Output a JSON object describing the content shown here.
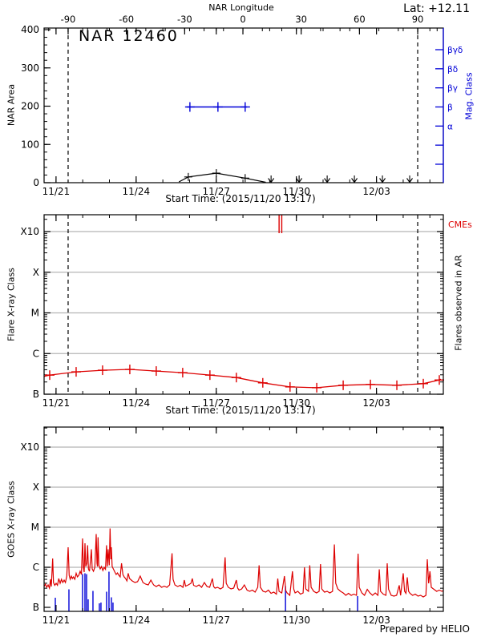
{
  "title": "NAR 12460",
  "lat_label": "Lat: +12.11",
  "prepared_by": "Prepared by HELIO",
  "start_time_caption": "Start Time: (2015/11/20 13:17)",
  "colors": {
    "red": "#dd0000",
    "blue": "#0000d8",
    "grid": "#b4b4b4",
    "black": "#000000"
  },
  "time_axis": {
    "span_days": 14.95,
    "major_ticks": [
      {
        "day": 0.447,
        "label": "11/21"
      },
      {
        "day": 3.447,
        "label": "11/24"
      },
      {
        "day": 6.447,
        "label": "11/27"
      },
      {
        "day": 9.447,
        "label": "11/30"
      },
      {
        "day": 12.447,
        "label": "12/03"
      }
    ],
    "minor_start_day": 0.447,
    "minor_step_days": 1,
    "minor_count": 15
  },
  "limb_line_days": [
    0.9,
    13.99
  ],
  "chart_data": [
    {
      "type": "line",
      "panel": "nar-area",
      "ylabel": "NAR Area",
      "ylim": [
        0,
        400
      ],
      "yticks": [
        0,
        100,
        200,
        300,
        400
      ],
      "y_minor_step": 20,
      "top_axis": {
        "label": "NAR Longitude",
        "ticks": [
          -90,
          -60,
          -30,
          0,
          30,
          60,
          90
        ],
        "minor_step": 10,
        "day_at_minus90": 0.9,
        "deg_per_day": 13.75
      },
      "area_series": {
        "days": [
          5.05,
          5.4,
          6.45,
          7.53,
          8.3
        ],
        "values": [
          2,
          15,
          25,
          12,
          1
        ],
        "marker_days": [
          5.4,
          6.45,
          7.53
        ]
      },
      "zero_marker_days": [
        8.5,
        9.55,
        10.6,
        11.62,
        12.67,
        13.69
      ],
      "mag_axis": {
        "label": "Mag. Class",
        "tick_labels_top_to_bottom": [
          "βγδ",
          "βδ",
          "βγ",
          "β",
          "α",
          "",
          ""
        ],
        "series": {
          "level_label": "β",
          "level_index_from_top": 3,
          "start_day": 5.34,
          "end_day": 7.6,
          "marker_days": [
            5.46,
            6.51,
            7.53
          ]
        }
      }
    },
    {
      "type": "line",
      "panel": "flare-xray",
      "ylabel": "Flare X-ray Class",
      "ytick_labels": [
        "B",
        "C",
        "M",
        "X",
        "X10"
      ],
      "right_label": "Flares observed in AR",
      "cmes": {
        "label": "CMEs",
        "days": [
          8.8,
          8.9
        ]
      },
      "flare_series": {
        "days": [
          0.0,
          0.21,
          1.2,
          2.19,
          3.21,
          4.2,
          5.19,
          6.21,
          7.2,
          8.19,
          9.21,
          10.21,
          11.2,
          12.22,
          13.21,
          14.2,
          14.8,
          14.86
        ],
        "class_values": [
          0.44,
          0.47,
          0.55,
          0.59,
          0.61,
          0.57,
          0.53,
          0.47,
          0.41,
          0.28,
          0.18,
          0.16,
          0.22,
          0.24,
          0.22,
          0.26,
          0.35,
          0.37
        ],
        "marker_index_range": [
          1,
          16
        ]
      }
    },
    {
      "type": "line",
      "panel": "goes-xray",
      "ylabel": "GOES X-ray Class",
      "ytick_labels": [
        "B",
        "C",
        "M",
        "X",
        "X10"
      ],
      "goes_series": {
        "points": [
          [
            0.0,
            0.52
          ],
          [
            0.05,
            0.58
          ],
          [
            0.1,
            0.5
          ],
          [
            0.15,
            0.56
          ],
          [
            0.2,
            0.48
          ],
          [
            0.24,
            0.7
          ],
          [
            0.27,
            0.52
          ],
          [
            0.32,
            1.22
          ],
          [
            0.35,
            0.62
          ],
          [
            0.4,
            0.55
          ],
          [
            0.45,
            0.6
          ],
          [
            0.5,
            0.55
          ],
          [
            0.55,
            0.72
          ],
          [
            0.6,
            0.6
          ],
          [
            0.65,
            0.7
          ],
          [
            0.7,
            0.62
          ],
          [
            0.75,
            0.68
          ],
          [
            0.8,
            0.62
          ],
          [
            0.85,
            0.78
          ],
          [
            0.9,
            1.5
          ],
          [
            0.94,
            0.8
          ],
          [
            0.98,
            0.7
          ],
          [
            1.02,
            0.78
          ],
          [
            1.06,
            0.72
          ],
          [
            1.1,
            0.76
          ],
          [
            1.15,
            0.7
          ],
          [
            1.2,
            0.85
          ],
          [
            1.25,
            0.76
          ],
          [
            1.3,
            0.8
          ],
          [
            1.35,
            0.9
          ],
          [
            1.4,
            0.82
          ],
          [
            1.44,
            1.72
          ],
          [
            1.47,
            1.0
          ],
          [
            1.5,
            0.88
          ],
          [
            1.53,
            1.6
          ],
          [
            1.56,
            1.02
          ],
          [
            1.6,
            1.1
          ],
          [
            1.63,
            1.55
          ],
          [
            1.66,
            0.96
          ],
          [
            1.7,
            0.9
          ],
          [
            1.74,
            1.2
          ],
          [
            1.77,
            1.45
          ],
          [
            1.8,
            0.96
          ],
          [
            1.85,
            0.9
          ],
          [
            1.9,
            1.0
          ],
          [
            1.95,
            1.83
          ],
          [
            1.98,
            1.1
          ],
          [
            2.0,
            1.02
          ],
          [
            2.02,
            1.75
          ],
          [
            2.05,
            1.05
          ],
          [
            2.1,
            0.96
          ],
          [
            2.15,
            1.02
          ],
          [
            2.2,
            0.92
          ],
          [
            2.25,
            1.0
          ],
          [
            2.3,
            0.95
          ],
          [
            2.34,
            1.55
          ],
          [
            2.37,
            1.02
          ],
          [
            2.4,
            1.45
          ],
          [
            2.44,
            1.05
          ],
          [
            2.47,
            1.97
          ],
          [
            2.5,
            1.2
          ],
          [
            2.52,
            1.5
          ],
          [
            2.55,
            1.02
          ],
          [
            2.6,
            0.95
          ],
          [
            2.65,
            0.88
          ],
          [
            2.7,
            0.82
          ],
          [
            2.75,
            0.86
          ],
          [
            2.8,
            0.8
          ],
          [
            2.85,
            0.76
          ],
          [
            2.9,
            1.1
          ],
          [
            2.95,
            0.82
          ],
          [
            3.0,
            0.76
          ],
          [
            3.05,
            0.72
          ],
          [
            3.1,
            0.66
          ],
          [
            3.15,
            0.85
          ],
          [
            3.2,
            0.72
          ],
          [
            3.3,
            0.66
          ],
          [
            3.4,
            0.62
          ],
          [
            3.5,
            0.64
          ],
          [
            3.6,
            0.78
          ],
          [
            3.7,
            0.62
          ],
          [
            3.8,
            0.58
          ],
          [
            3.9,
            0.56
          ],
          [
            4.0,
            0.68
          ],
          [
            4.1,
            0.56
          ],
          [
            4.2,
            0.52
          ],
          [
            4.3,
            0.56
          ],
          [
            4.4,
            0.5
          ],
          [
            4.5,
            0.53
          ],
          [
            4.6,
            0.5
          ],
          [
            4.7,
            0.56
          ],
          [
            4.79,
            1.35
          ],
          [
            4.83,
            0.7
          ],
          [
            4.9,
            0.56
          ],
          [
            5.0,
            0.52
          ],
          [
            5.1,
            0.55
          ],
          [
            5.2,
            0.5
          ],
          [
            5.25,
            0.68
          ],
          [
            5.3,
            0.53
          ],
          [
            5.4,
            0.56
          ],
          [
            5.5,
            0.6
          ],
          [
            5.55,
            0.72
          ],
          [
            5.6,
            0.55
          ],
          [
            5.7,
            0.52
          ],
          [
            5.8,
            0.56
          ],
          [
            5.9,
            0.5
          ],
          [
            6.0,
            0.62
          ],
          [
            6.1,
            0.52
          ],
          [
            6.2,
            0.5
          ],
          [
            6.3,
            0.72
          ],
          [
            6.35,
            0.52
          ],
          [
            6.4,
            0.48
          ],
          [
            6.5,
            0.5
          ],
          [
            6.6,
            0.46
          ],
          [
            6.7,
            0.5
          ],
          [
            6.78,
            1.25
          ],
          [
            6.82,
            0.6
          ],
          [
            6.9,
            0.5
          ],
          [
            7.0,
            0.46
          ],
          [
            7.1,
            0.48
          ],
          [
            7.2,
            0.68
          ],
          [
            7.25,
            0.48
          ],
          [
            7.3,
            0.43
          ],
          [
            7.4,
            0.46
          ],
          [
            7.5,
            0.56
          ],
          [
            7.6,
            0.43
          ],
          [
            7.7,
            0.4
          ],
          [
            7.8,
            0.43
          ],
          [
            7.9,
            0.38
          ],
          [
            8.0,
            0.5
          ],
          [
            8.05,
            1.05
          ],
          [
            8.1,
            0.5
          ],
          [
            8.2,
            0.4
          ],
          [
            8.3,
            0.38
          ],
          [
            8.4,
            0.43
          ],
          [
            8.5,
            0.35
          ],
          [
            8.6,
            0.38
          ],
          [
            8.7,
            0.33
          ],
          [
            8.75,
            0.72
          ],
          [
            8.8,
            0.4
          ],
          [
            8.9,
            0.36
          ],
          [
            9.0,
            0.78
          ],
          [
            9.05,
            0.42
          ],
          [
            9.1,
            0.36
          ],
          [
            9.2,
            0.3
          ],
          [
            9.3,
            0.9
          ],
          [
            9.35,
            0.45
          ],
          [
            9.4,
            0.36
          ],
          [
            9.5,
            0.4
          ],
          [
            9.6,
            0.33
          ],
          [
            9.7,
            0.36
          ],
          [
            9.75,
            1.0
          ],
          [
            9.8,
            0.46
          ],
          [
            9.9,
            0.4
          ],
          [
            9.95,
            1.05
          ],
          [
            10.0,
            0.5
          ],
          [
            10.1,
            0.4
          ],
          [
            10.2,
            0.36
          ],
          [
            10.3,
            0.4
          ],
          [
            10.35,
            1.08
          ],
          [
            10.4,
            0.46
          ],
          [
            10.5,
            0.38
          ],
          [
            10.6,
            0.4
          ],
          [
            10.7,
            0.36
          ],
          [
            10.8,
            0.4
          ],
          [
            10.87,
            1.57
          ],
          [
            10.92,
            0.6
          ],
          [
            11.0,
            0.46
          ],
          [
            11.1,
            0.4
          ],
          [
            11.2,
            0.36
          ],
          [
            11.3,
            0.3
          ],
          [
            11.4,
            0.35
          ],
          [
            11.5,
            0.3
          ],
          [
            11.6,
            0.33
          ],
          [
            11.7,
            0.3
          ],
          [
            11.76,
            1.34
          ],
          [
            11.8,
            0.5
          ],
          [
            11.9,
            0.36
          ],
          [
            12.0,
            0.3
          ],
          [
            12.1,
            0.45
          ],
          [
            12.2,
            0.36
          ],
          [
            12.3,
            0.3
          ],
          [
            12.4,
            0.36
          ],
          [
            12.5,
            0.3
          ],
          [
            12.55,
            0.95
          ],
          [
            12.6,
            0.4
          ],
          [
            12.7,
            0.33
          ],
          [
            12.8,
            0.3
          ],
          [
            12.85,
            1.1
          ],
          [
            12.9,
            0.45
          ],
          [
            13.0,
            0.3
          ],
          [
            13.1,
            0.28
          ],
          [
            13.2,
            0.3
          ],
          [
            13.3,
            0.55
          ],
          [
            13.35,
            0.3
          ],
          [
            13.45,
            0.85
          ],
          [
            13.5,
            0.4
          ],
          [
            13.55,
            0.35
          ],
          [
            13.6,
            0.75
          ],
          [
            13.65,
            0.4
          ],
          [
            13.7,
            0.35
          ],
          [
            13.8,
            0.3
          ],
          [
            13.9,
            0.33
          ],
          [
            14.0,
            0.28
          ],
          [
            14.1,
            0.3
          ],
          [
            14.2,
            0.26
          ],
          [
            14.3,
            0.3
          ],
          [
            14.35,
            1.2
          ],
          [
            14.4,
            0.6
          ],
          [
            14.45,
            0.9
          ],
          [
            14.5,
            0.5
          ],
          [
            14.6,
            0.45
          ],
          [
            14.7,
            0.4
          ],
          [
            14.8,
            0.43
          ],
          [
            14.9,
            0.4
          ],
          [
            14.95,
            0.42
          ]
        ]
      },
      "ar_flare_spikes": {
        "points": [
          [
            0.42,
            0.24
          ],
          [
            0.93,
            0.45
          ],
          [
            1.44,
            0.83
          ],
          [
            1.53,
            0.85
          ],
          [
            1.59,
            0.83
          ],
          [
            1.65,
            0.2
          ],
          [
            1.83,
            0.41
          ],
          [
            2.07,
            0.1
          ],
          [
            2.13,
            0.12
          ],
          [
            2.34,
            0.39
          ],
          [
            2.43,
            0.89
          ],
          [
            2.52,
            0.25
          ],
          [
            2.58,
            0.12
          ],
          [
            9.04,
            0.53
          ],
          [
            11.74,
            0.28
          ]
        ]
      }
    }
  ]
}
